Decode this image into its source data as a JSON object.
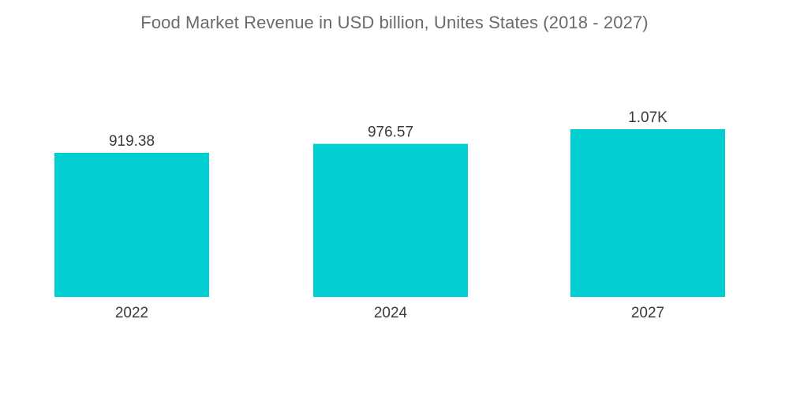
{
  "chart_data": {
    "type": "bar",
    "title": "Food Market Revenue in USD billion, Unites States (2018 - 2027)",
    "categories": [
      "2022",
      "2024",
      "2027"
    ],
    "values": [
      919.38,
      976.57,
      1070
    ],
    "data_labels": [
      "919.38",
      "976.57",
      "1.07K"
    ],
    "xlabel": "",
    "ylabel": "",
    "ylim": [
      0,
      1070
    ],
    "grid": false,
    "legend": "none",
    "bar_color": "#00ced1"
  }
}
